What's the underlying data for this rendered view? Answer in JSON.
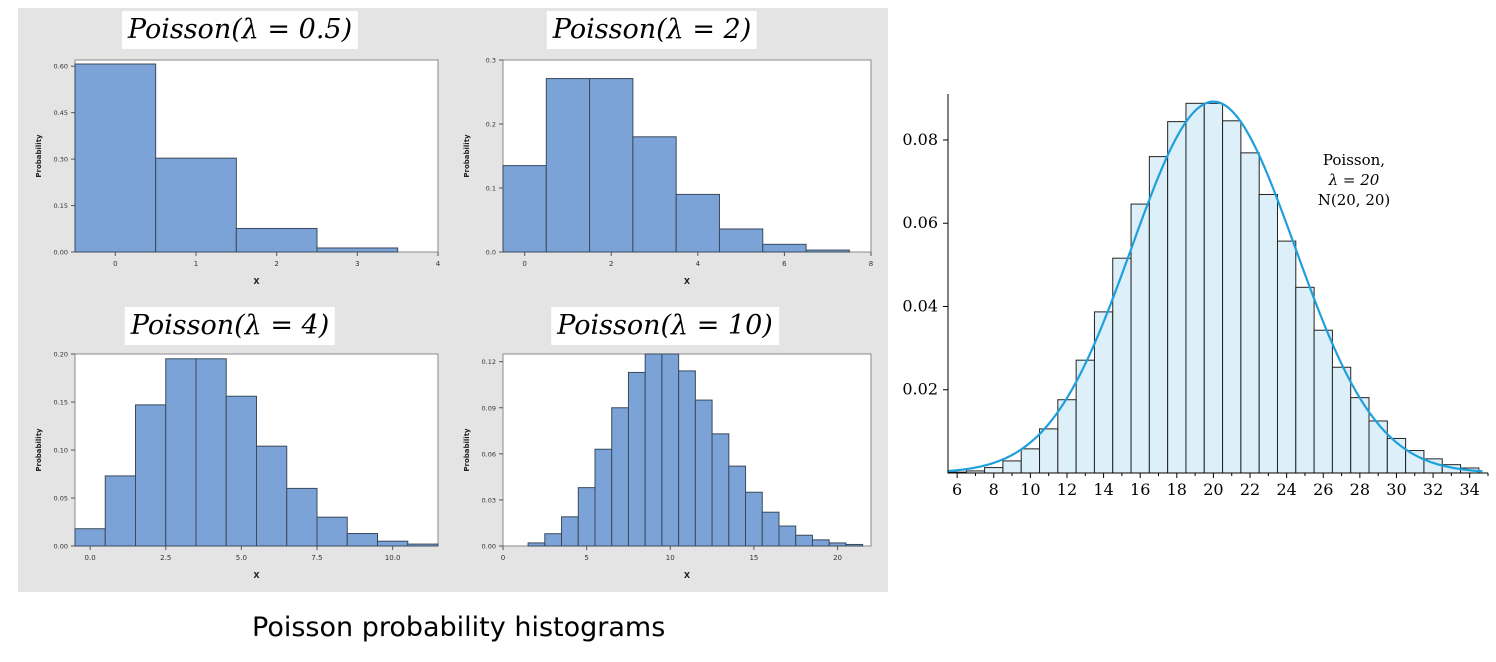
{
  "caption": "Poisson probability histograms",
  "colors": {
    "bar_fill": "#7ba3d8",
    "bar_stroke": "#3a4a5c",
    "panel_bg": "#e4e4e4",
    "big_bar_fill": "#ddf0fa",
    "curve": "#1ea0dc"
  },
  "chart_data": [
    {
      "type": "bar",
      "title": "Poisson(λ = 0.5)",
      "xlabel": "X",
      "ylabel": "Probability",
      "categories": [
        0,
        1,
        2,
        3
      ],
      "values": [
        0.607,
        0.303,
        0.076,
        0.013
      ],
      "xlim": [
        -0.5,
        4
      ],
      "ylim": [
        0,
        0.62
      ],
      "xticks": [
        0,
        1,
        2,
        3,
        4
      ],
      "xtick_labels": [
        "0",
        "1",
        "2",
        "3",
        "4"
      ],
      "yticks": [
        0,
        0.15,
        0.3,
        0.45,
        0.6
      ],
      "ytick_labels": [
        "0.00",
        "0.15",
        "0.30",
        "0.45",
        "0.60"
      ]
    },
    {
      "type": "bar",
      "title": "Poisson(λ = 2)",
      "xlabel": "X",
      "ylabel": "Probability",
      "categories": [
        0,
        1,
        2,
        3,
        4,
        5,
        6,
        7
      ],
      "values": [
        0.135,
        0.271,
        0.271,
        0.18,
        0.09,
        0.036,
        0.012,
        0.003
      ],
      "xlim": [
        -0.5,
        8
      ],
      "ylim": [
        0,
        0.3
      ],
      "xticks": [
        0,
        2,
        4,
        6,
        8
      ],
      "xtick_labels": [
        "0",
        "2",
        "4",
        "6",
        "8"
      ],
      "yticks": [
        0,
        0.1,
        0.2,
        0.3
      ],
      "ytick_labels": [
        "0.0",
        "0.1",
        "0.2",
        "0.3"
      ]
    },
    {
      "type": "bar",
      "title": "Poisson(λ = 4)",
      "xlabel": "X",
      "ylabel": "Probability",
      "categories": [
        0,
        1,
        2,
        3,
        4,
        5,
        6,
        7,
        8,
        9,
        10,
        11
      ],
      "values": [
        0.018,
        0.073,
        0.147,
        0.195,
        0.195,
        0.156,
        0.104,
        0.06,
        0.03,
        0.013,
        0.005,
        0.002
      ],
      "xlim": [
        -0.5,
        11.5
      ],
      "ylim": [
        0,
        0.2
      ],
      "xticks": [
        0,
        2.5,
        5,
        7.5,
        10
      ],
      "xtick_labels": [
        "0.0",
        "2.5",
        "5.0",
        "7.5",
        "10.0"
      ],
      "yticks": [
        0,
        0.05,
        0.1,
        0.15,
        0.2
      ],
      "ytick_labels": [
        "0.00",
        "0.05",
        "0.10",
        "0.15",
        "0.20"
      ]
    },
    {
      "type": "bar",
      "title": "Poisson(λ = 10)",
      "xlabel": "X",
      "ylabel": "Probability",
      "categories": [
        2,
        3,
        4,
        5,
        6,
        7,
        8,
        9,
        10,
        11,
        12,
        13,
        14,
        15,
        16,
        17,
        18,
        19,
        20,
        21
      ],
      "values": [
        0.002,
        0.008,
        0.019,
        0.038,
        0.063,
        0.09,
        0.113,
        0.125,
        0.125,
        0.114,
        0.095,
        0.073,
        0.052,
        0.035,
        0.022,
        0.013,
        0.007,
        0.004,
        0.002,
        0.001
      ],
      "xlim": [
        0,
        22
      ],
      "ylim": [
        0,
        0.125
      ],
      "xticks": [
        0,
        5,
        10,
        15,
        20
      ],
      "xtick_labels": [
        "0",
        "5",
        "10",
        "15",
        "20"
      ],
      "yticks": [
        0,
        0.03,
        0.06,
        0.09,
        0.12
      ],
      "ytick_labels": [
        "0.00",
        "0.03",
        "0.06",
        "0.09",
        "0.12"
      ]
    },
    {
      "type": "bar",
      "annotation": [
        "Poisson,",
        "λ = 20",
        "N(20, 20)"
      ],
      "categories": [
        6,
        7,
        8,
        9,
        10,
        11,
        12,
        13,
        14,
        15,
        16,
        17,
        18,
        19,
        20,
        21,
        22,
        23,
        24,
        25,
        26,
        27,
        28,
        29,
        30,
        31,
        32,
        33,
        34
      ],
      "values": [
        0.0002,
        0.0005,
        0.0013,
        0.0029,
        0.0058,
        0.0106,
        0.0176,
        0.0271,
        0.0387,
        0.0516,
        0.0646,
        0.076,
        0.0844,
        0.0888,
        0.0888,
        0.0846,
        0.0769,
        0.0669,
        0.0557,
        0.0446,
        0.0343,
        0.0254,
        0.0181,
        0.0125,
        0.0083,
        0.0054,
        0.0034,
        0.002,
        0.0012
      ],
      "curve": {
        "type": "normal",
        "mean": 20,
        "variance": 20
      },
      "xlim": [
        5.5,
        35
      ],
      "ylim": [
        0,
        0.092
      ],
      "xticks": [
        6,
        8,
        10,
        12,
        14,
        16,
        18,
        20,
        22,
        24,
        26,
        28,
        30,
        32,
        34
      ],
      "xtick_labels": [
        "6",
        "8",
        "10",
        "12",
        "14",
        "16",
        "18",
        "20",
        "22",
        "24",
        "26",
        "28",
        "30",
        "32",
        "34"
      ],
      "yticks": [
        0.02,
        0.04,
        0.06,
        0.08
      ],
      "ytick_labels": [
        "0.02",
        "0.04",
        "0.06",
        "0.08"
      ]
    }
  ]
}
